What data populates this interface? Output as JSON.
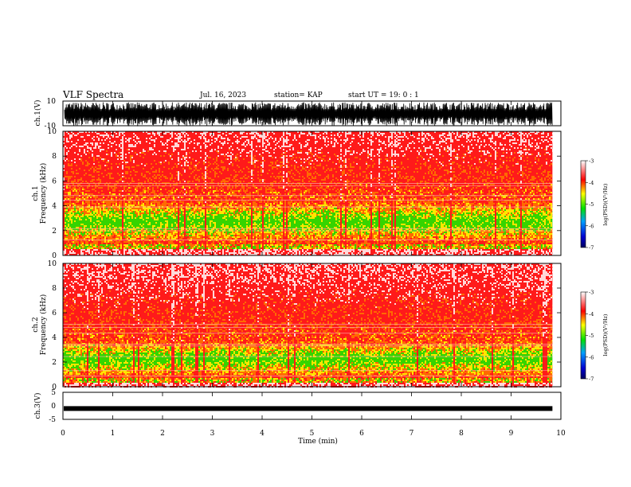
{
  "header": {
    "title": "VLF Spectra",
    "date": "Jul. 16, 2023",
    "station": "station= KAP",
    "start_ut": "start UT =  19: 0  : 1"
  },
  "colors": {
    "low": "#0000b0",
    "mid_low": "#00a0ff",
    "mid": "#00e000",
    "mid_high": "#ffff00",
    "high": "#ff0000",
    "top": "#ffffff"
  },
  "chart_data": [
    {
      "type": "line",
      "name": "ch1-waveform",
      "ylabel": "ch.1(V)",
      "ylim": [
        -10,
        10
      ],
      "yticks": [
        "10",
        "-10"
      ],
      "x_range_min": [
        0,
        9.83
      ],
      "description_values": "dense oscillation between about -9 and +9 V"
    },
    {
      "type": "heatmap",
      "name": "ch1-spectrogram",
      "ylabel_channel": "ch.1",
      "ylabel": "Frequency (kHz)",
      "ylim": [
        0,
        10
      ],
      "yticks": [
        "0",
        "2",
        "4",
        "6",
        "8",
        "10"
      ],
      "colorbar": {
        "label": "log(PSD)(V²/Hz)",
        "range": [
          -7,
          -3
        ],
        "ticks": [
          "-3",
          "-4",
          "-5",
          "-6",
          "-7"
        ]
      },
      "bands_khz": {
        "intense_yellow_green": [
          1.0,
          4.5
        ],
        "red": [
          0.6,
          10
        ]
      }
    },
    {
      "type": "heatmap",
      "name": "ch2-spectrogram",
      "ylabel_channel": "ch.2",
      "ylabel": "Frequency (kHz)",
      "ylim": [
        0,
        10
      ],
      "yticks": [
        "0",
        "2",
        "4",
        "6",
        "8",
        "10"
      ],
      "colorbar": {
        "label": "log(PSD)(V²/Hz)",
        "range": [
          -7,
          -3
        ],
        "ticks": [
          "-3",
          "-4",
          "-5",
          "-6",
          "-7"
        ]
      },
      "bands_khz": {
        "intense_yellow_green": [
          0.8,
          3.8
        ],
        "red": [
          0.4,
          10
        ]
      }
    },
    {
      "type": "line",
      "name": "ch3-waveform",
      "ylabel": "ch.3(V)",
      "ylim": [
        -5,
        5
      ],
      "yticks": [
        "5",
        "0",
        "-5"
      ],
      "level_v": -1,
      "x_range_min": [
        0,
        9.83
      ]
    }
  ],
  "x_axis": {
    "label": "Time (min)",
    "range": [
      0,
      10
    ],
    "ticks": [
      "0",
      "1",
      "2",
      "3",
      "4",
      "5",
      "6",
      "7",
      "8",
      "9",
      "10"
    ]
  }
}
